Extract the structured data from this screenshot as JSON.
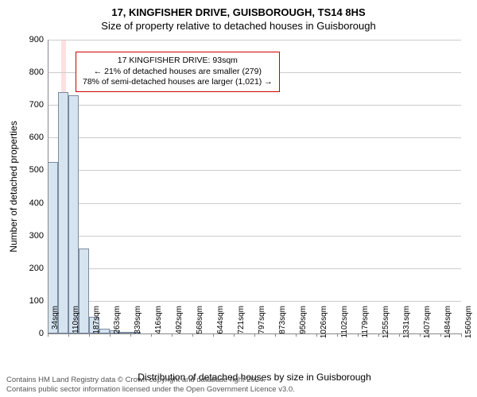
{
  "title_line1": "17, KINGFISHER DRIVE, GUISBOROUGH, TS14 8HS",
  "title_line2": "Size of property relative to detached houses in Guisborough",
  "ylabel": "Number of detached properties",
  "xlabel": "Distribution of detached houses by size in Guisborough",
  "ylim": [
    0,
    900
  ],
  "ytick_step": 100,
  "yticks": [
    0,
    100,
    200,
    300,
    400,
    500,
    600,
    700,
    800,
    900
  ],
  "xticks": [
    "34sqm",
    "110sqm",
    "187sqm",
    "263sqm",
    "339sqm",
    "416sqm",
    "492sqm",
    "568sqm",
    "644sqm",
    "721sqm",
    "797sqm",
    "873sqm",
    "950sqm",
    "1026sqm",
    "1102sqm",
    "1179sqm",
    "1255sqm",
    "1331sqm",
    "1407sqm",
    "1484sqm",
    "1560sqm"
  ],
  "bar_color": "#d6e4f0",
  "bar_border": "#7a8aa0",
  "grid_color": "#cccccc",
  "highlight_color": "#ffcccc",
  "highlight_x": 93,
  "x_range": [
    34,
    1560
  ],
  "bars": [
    {
      "x": 34,
      "w": 38,
      "v": 525
    },
    {
      "x": 72,
      "w": 38,
      "v": 740
    },
    {
      "x": 110,
      "w": 38,
      "v": 730
    },
    {
      "x": 148,
      "w": 38,
      "v": 260
    },
    {
      "x": 186,
      "w": 38,
      "v": 50
    },
    {
      "x": 224,
      "w": 38,
      "v": 15
    },
    {
      "x": 262,
      "w": 38,
      "v": 10
    },
    {
      "x": 300,
      "w": 38,
      "v": 5
    },
    {
      "x": 338,
      "w": 38,
      "v": 5
    }
  ],
  "annotation": {
    "line1": "17 KINGFISHER DRIVE: 93sqm",
    "line2": "← 21% of detached houses are smaller (279)",
    "line3": "78% of semi-detached houses are larger (1,021) →",
    "border_color": "#cc0000",
    "fontsize": 10.5
  },
  "footer": {
    "line1": "Contains HM Land Registry data © Crown copyright and database right 2024.",
    "line2": "Contains public sector information licensed under the Open Government Licence v3.0."
  }
}
